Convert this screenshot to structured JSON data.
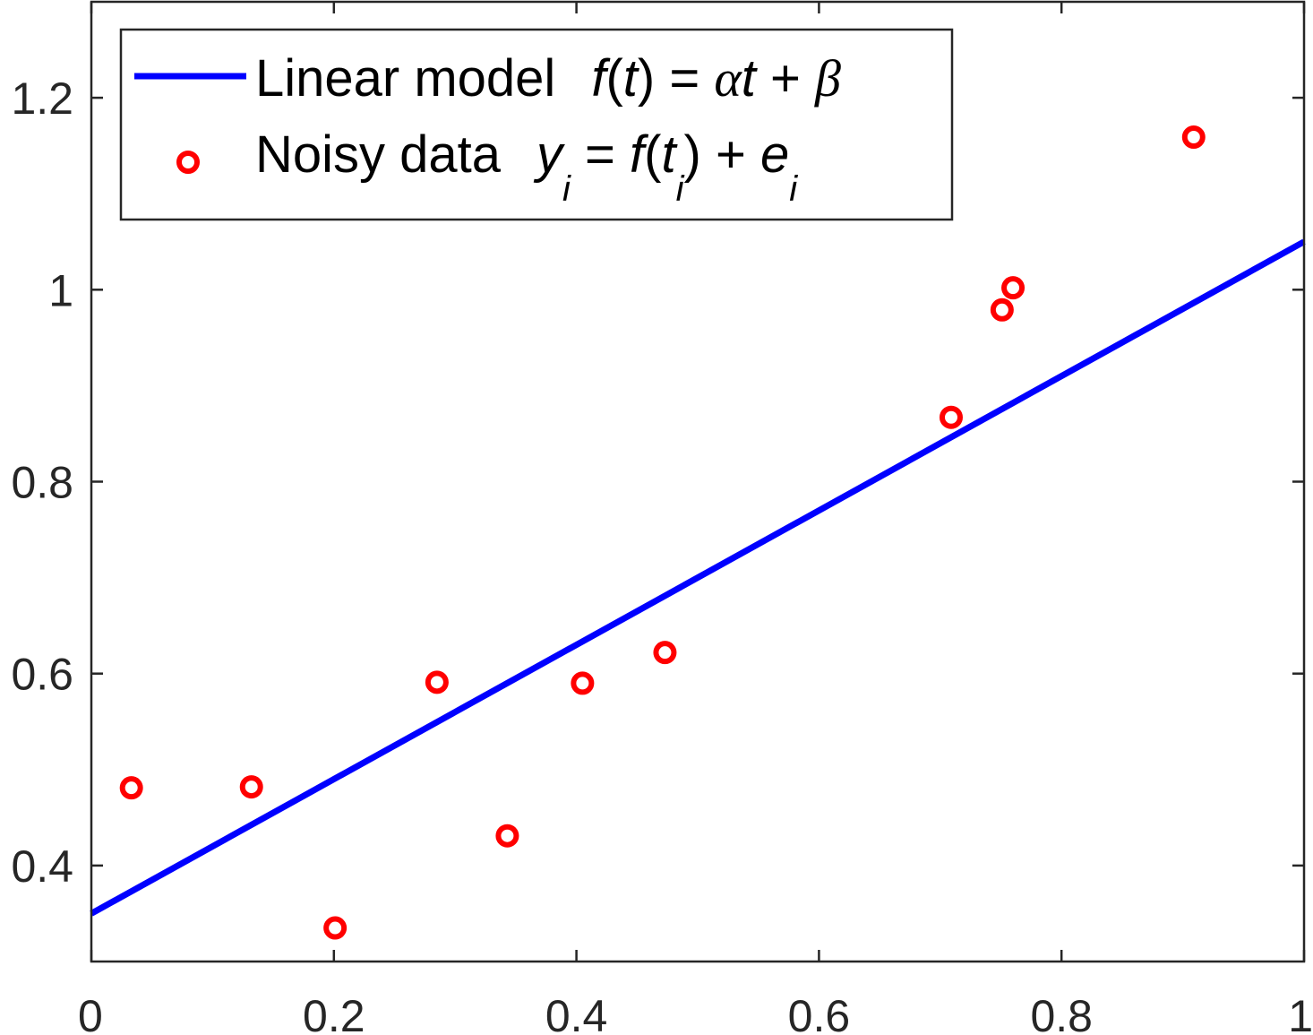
{
  "chart_data": {
    "type": "scatter",
    "xlim": [
      0,
      1
    ],
    "ylim": [
      0.3,
      1.3
    ],
    "x_ticks": [
      0,
      0.2,
      0.4,
      0.6,
      0.8,
      1
    ],
    "x_tick_labels": [
      "0",
      "0.2",
      "0.4",
      "0.6",
      "0.8",
      "1"
    ],
    "y_ticks": [
      0.4,
      0.6,
      0.8,
      1.0,
      1.2
    ],
    "y_tick_labels": [
      "0.4",
      "0.6",
      "0.8",
      "1",
      "1.2"
    ],
    "grid": false,
    "legend_position": "top-left",
    "series": [
      {
        "name": "Linear model  f(t) = αt + β",
        "kind": "line",
        "color": "#0000ff",
        "x": [
          0,
          1
        ],
        "y": [
          0.35,
          1.05
        ]
      },
      {
        "name": "Noisy data  yi = f(ti) + ei",
        "kind": "scatter",
        "marker": "circle-open",
        "color": "#ff0000",
        "x": [
          0.033,
          0.132,
          0.201,
          0.285,
          0.343,
          0.405,
          0.473,
          0.709,
          0.751,
          0.76,
          0.909
        ],
        "y": [
          0.481,
          0.482,
          0.335,
          0.591,
          0.431,
          0.59,
          0.622,
          0.867,
          0.979,
          1.002,
          1.159
        ]
      }
    ],
    "legend": {
      "line": {
        "label_text": "Linear model",
        "formula": {
          "f": "f",
          "open": "(",
          "t": "t",
          "close": ")",
          "eq": " = ",
          "alpha": "α",
          "t2": "t",
          "plus": " + ",
          "beta": "β"
        }
      },
      "data": {
        "label_text": "Noisy data",
        "formula": {
          "y": "y",
          "i1": "i",
          "eq": " = ",
          "f": "f",
          "open": "(",
          "t": "t",
          "i2": "i",
          "close": ")",
          "plus": " + ",
          "e": "e",
          "i3": "i"
        }
      }
    }
  }
}
